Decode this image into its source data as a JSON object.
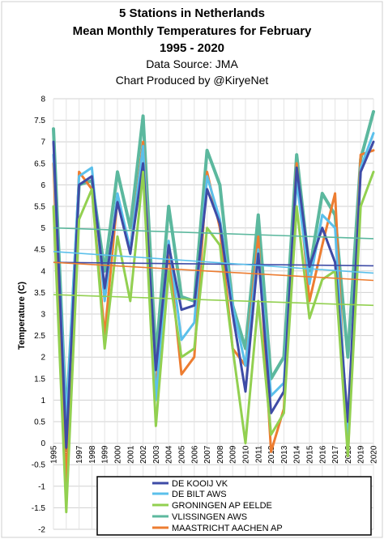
{
  "chart_data": {
    "type": "line",
    "title_lines": [
      "5 Stations in Netherlands",
      "Mean Monthly Temperatures for February",
      "1995 - 2020"
    ],
    "subtitle_lines": [
      "Data Source: JMA",
      "Chart Produced by @KiryeNet"
    ],
    "ylabel": "Temperature (C)",
    "ylim": [
      -2,
      8
    ],
    "y_ticks": [
      "-2",
      "-1.5",
      "-1",
      "-0.5",
      "0",
      "0.5",
      "1",
      "1.5",
      "2",
      "2.5",
      "3",
      "3.5",
      "4",
      "4.5",
      "5",
      "5.5",
      "6",
      "6.5",
      "7",
      "7.5",
      "8"
    ],
    "x": [
      "1995",
      "1996",
      "1997",
      "1998",
      "1999",
      "2000",
      "2001",
      "2002",
      "2003",
      "2004",
      "2005",
      "2006",
      "2007",
      "2008",
      "2009",
      "2010",
      "2011",
      "2012",
      "2013",
      "2014",
      "2015",
      "2016",
      "2017",
      "2018",
      "2019",
      "2020"
    ],
    "grid": true,
    "legend_position": "bottom",
    "series": [
      {
        "name": "VLISSINGEN AWS",
        "color": "#5cb89e",
        "width": 4,
        "values": [
          7.3,
          0.5,
          6.0,
          6.1,
          4.0,
          6.3,
          5.0,
          7.6,
          2.0,
          5.5,
          3.4,
          3.3,
          6.8,
          6.0,
          3.2,
          2.2,
          5.3,
          1.5,
          2.0,
          6.7,
          4.0,
          5.8,
          5.3,
          2.0,
          6.6,
          7.7
        ]
      },
      {
        "name": "MAASTRICHT AACHEN AP",
        "color": "#ed7d31",
        "width": 3,
        "values": [
          6.5,
          -1.0,
          6.3,
          5.9,
          2.5,
          5.7,
          4.5,
          7.0,
          1.2,
          4.5,
          1.6,
          2.0,
          6.3,
          5.0,
          2.2,
          1.8,
          4.8,
          -0.2,
          0.8,
          6.5,
          3.3,
          4.6,
          5.8,
          -0.3,
          6.7,
          6.8
        ]
      },
      {
        "name": "DE BILT AWS",
        "color": "#5bc0eb",
        "width": 3,
        "values": [
          6.7,
          0.5,
          6.2,
          6.4,
          3.3,
          5.8,
          4.5,
          6.9,
          1.0,
          4.7,
          2.4,
          2.8,
          6.2,
          5.2,
          3.2,
          1.8,
          4.5,
          1.1,
          1.4,
          6.1,
          3.7,
          5.3,
          5.0,
          0.2,
          6.4,
          7.2
        ]
      },
      {
        "name": "DE KOOIJ VK",
        "color": "#3e4ba6",
        "width": 3,
        "values": [
          7.0,
          -0.1,
          6.0,
          6.2,
          3.6,
          5.6,
          4.4,
          6.5,
          1.7,
          4.6,
          3.1,
          3.2,
          5.9,
          5.1,
          3.0,
          1.2,
          4.4,
          0.7,
          1.2,
          6.4,
          4.1,
          5.0,
          4.2,
          0.5,
          6.3,
          7.0
        ]
      },
      {
        "name": "GRONINGEN AP EELDE",
        "color": "#92d050",
        "width": 3,
        "values": [
          5.5,
          -1.6,
          5.2,
          5.9,
          2.2,
          4.8,
          3.3,
          6.3,
          0.4,
          4.0,
          2.0,
          2.2,
          5.0,
          4.6,
          2.2,
          0.0,
          3.3,
          0.2,
          0.7,
          5.5,
          2.9,
          3.8,
          4.0,
          -0.3,
          5.5,
          6.3
        ]
      }
    ],
    "trendlines": [
      {
        "color": "#5cb89e",
        "from": 5.0,
        "to": 4.75
      },
      {
        "color": "#3e4ba6",
        "from": 4.2,
        "to": 4.12
      },
      {
        "color": "#5bc0eb",
        "from": 4.45,
        "to": 3.95
      },
      {
        "color": "#ed7d31",
        "from": 4.2,
        "to": 3.78
      },
      {
        "color": "#92d050",
        "from": 3.45,
        "to": 3.2
      }
    ],
    "legend": [
      {
        "name": "DE KOOIJ VK",
        "color": "#3e4ba6"
      },
      {
        "name": "DE BILT AWS",
        "color": "#5bc0eb"
      },
      {
        "name": "GRONINGEN AP EELDE",
        "color": "#92d050"
      },
      {
        "name": "VLISSINGEN AWS",
        "color": "#5cb89e"
      },
      {
        "name": "MAASTRICHT AACHEN AP",
        "color": "#ed7d31"
      }
    ]
  }
}
